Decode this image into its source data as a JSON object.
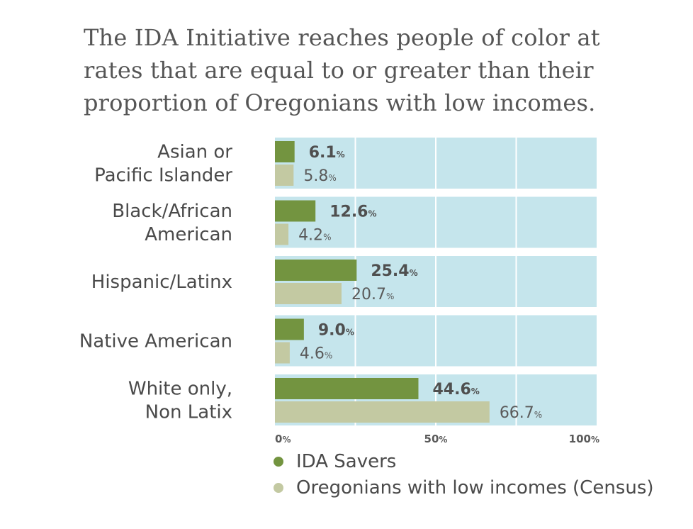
{
  "title": "The IDA Initiative reaches people of color at rates that are equal to or greater than their proportion of Oregonians with low incomes.",
  "colors": {
    "ida": "#739440",
    "census": "#c3c9a2",
    "panel": "#c5e5ec",
    "grid": "#ffffff"
  },
  "chart_data": {
    "type": "bar",
    "orientation": "horizontal",
    "title": "The IDA Initiative reaches people of color at rates that are equal to or greater than their proportion of Oregonians with low incomes.",
    "categories": [
      [
        "Asian or",
        "Pacific Islander"
      ],
      [
        "Black/African",
        "American"
      ],
      [
        "Hispanic/Latinx"
      ],
      [
        "Native American"
      ],
      [
        "White only,",
        "Non Latix"
      ]
    ],
    "series": [
      {
        "name": "IDA Savers",
        "values": [
          6.1,
          12.6,
          25.4,
          9.0,
          44.6
        ],
        "labels": [
          "6.1",
          "12.6",
          "25.4",
          "9.0",
          "44.6"
        ]
      },
      {
        "name": "Oregonians with low incomes (Census)",
        "values": [
          5.8,
          4.2,
          20.7,
          4.6,
          66.7
        ],
        "labels": [
          "5.8",
          "4.2",
          "20.7",
          "4.6",
          "66.7"
        ]
      }
    ],
    "unit": "%",
    "xlim": [
      0,
      100
    ],
    "ticks": [
      {
        "value": 0,
        "label": "0"
      },
      {
        "value": 50,
        "label": "50"
      },
      {
        "value": 100,
        "label": "100"
      }
    ],
    "gridlines": [
      25,
      50,
      75
    ],
    "legend_position": "bottom-left"
  }
}
